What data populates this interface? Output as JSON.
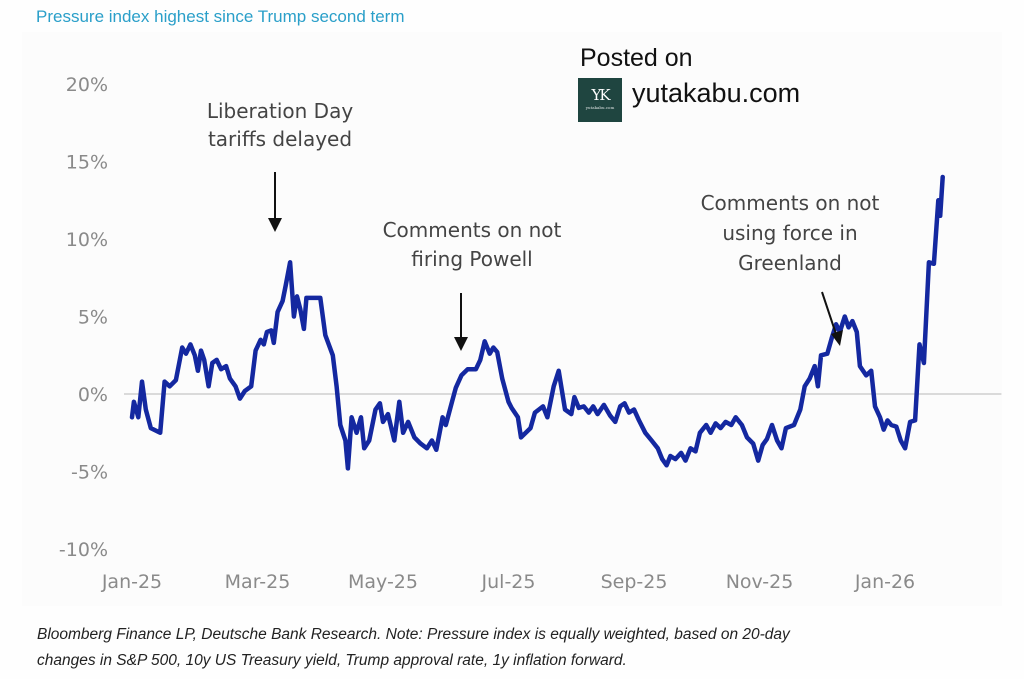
{
  "header": {
    "title": "Pressure index highest since Trump second term"
  },
  "watermark": {
    "posted_on": "Posted on",
    "site": "yutakabu.com",
    "logo_mark": "YK",
    "logo_subtext": "yutakabu.com"
  },
  "caption": {
    "line1": "Bloomberg Finance LP, Deutsche Bank Research. Note: Pressure index is equally weighted, based on 20-day",
    "line2": "changes in S&P 500, 10y US Treasury yield, Trump approval rate, 1y inflation forward."
  },
  "colors": {
    "line": "#1428a0",
    "title": "#2a9fc9",
    "tick": "#8a8a8a",
    "zero_line": "#cfcfcf",
    "annotation": "#444444"
  },
  "chart_data": {
    "type": "line",
    "title": "Pressure index highest since Trump second term",
    "xlabel": "",
    "ylabel": "",
    "x_unit": "months since Jan-25",
    "xlim": [
      0,
      13.6
    ],
    "ylim": [
      -10,
      20
    ],
    "yticks": [
      20,
      15,
      10,
      5,
      0,
      -5,
      -10
    ],
    "ytick_labels": [
      "20%",
      "15%",
      "10%",
      "5%",
      "0%",
      "-5%",
      "-10%"
    ],
    "xticks": [
      0,
      2,
      4,
      6,
      8,
      10,
      12
    ],
    "xtick_labels": [
      "Jan-25",
      "Mar-25",
      "May-25",
      "Jul-25",
      "Sep-25",
      "Nov-25",
      "Jan-26"
    ],
    "grid": false,
    "reference_line": 0,
    "legend": "none",
    "series": [
      {
        "name": "Pressure index",
        "points": [
          [
            0.0,
            -1.5
          ],
          [
            0.03,
            -0.5
          ],
          [
            0.1,
            -1.5
          ],
          [
            0.16,
            0.8
          ],
          [
            0.22,
            -1.0
          ],
          [
            0.3,
            -2.2
          ],
          [
            0.45,
            -2.5
          ],
          [
            0.52,
            0.8
          ],
          [
            0.6,
            0.5
          ],
          [
            0.7,
            0.9
          ],
          [
            0.8,
            3.0
          ],
          [
            0.86,
            2.6
          ],
          [
            0.93,
            3.2
          ],
          [
            1.0,
            2.5
          ],
          [
            1.05,
            1.5
          ],
          [
            1.1,
            2.8
          ],
          [
            1.15,
            2.2
          ],
          [
            1.22,
            0.5
          ],
          [
            1.28,
            2.0
          ],
          [
            1.35,
            2.2
          ],
          [
            1.42,
            1.6
          ],
          [
            1.5,
            1.8
          ],
          [
            1.56,
            1.0
          ],
          [
            1.65,
            0.5
          ],
          [
            1.72,
            -0.3
          ],
          [
            1.8,
            0.2
          ],
          [
            1.9,
            0.5
          ],
          [
            1.97,
            2.8
          ],
          [
            2.05,
            3.5
          ],
          [
            2.1,
            3.2
          ],
          [
            2.15,
            4.0
          ],
          [
            2.22,
            4.1
          ],
          [
            2.26,
            3.3
          ],
          [
            2.32,
            5.3
          ],
          [
            2.4,
            6.0
          ],
          [
            2.45,
            7.0
          ],
          [
            2.52,
            8.5
          ],
          [
            2.58,
            5.0
          ],
          [
            2.63,
            6.3
          ],
          [
            2.68,
            5.5
          ],
          [
            2.74,
            4.2
          ],
          [
            2.78,
            6.2
          ],
          [
            3.0,
            6.2
          ],
          [
            3.08,
            3.8
          ],
          [
            3.2,
            2.5
          ],
          [
            3.26,
            0.5
          ],
          [
            3.32,
            -2.0
          ],
          [
            3.4,
            -3.0
          ],
          [
            3.44,
            -4.8
          ],
          [
            3.5,
            -1.5
          ],
          [
            3.58,
            -2.5
          ],
          [
            3.65,
            -1.5
          ],
          [
            3.7,
            -3.5
          ],
          [
            3.78,
            -3.0
          ],
          [
            3.88,
            -1.0
          ],
          [
            3.95,
            -0.6
          ],
          [
            4.0,
            -1.8
          ],
          [
            4.08,
            -1.3
          ],
          [
            4.18,
            -3.0
          ],
          [
            4.26,
            -0.5
          ],
          [
            4.32,
            -2.5
          ],
          [
            4.4,
            -1.8
          ],
          [
            4.5,
            -2.8
          ],
          [
            4.6,
            -3.2
          ],
          [
            4.7,
            -3.5
          ],
          [
            4.78,
            -3.0
          ],
          [
            4.85,
            -3.6
          ],
          [
            4.95,
            -1.5
          ],
          [
            5.0,
            -2.0
          ],
          [
            5.1,
            -0.5
          ],
          [
            5.16,
            0.4
          ],
          [
            5.25,
            1.2
          ],
          [
            5.35,
            1.6
          ],
          [
            5.48,
            1.6
          ],
          [
            5.55,
            2.2
          ],
          [
            5.62,
            3.4
          ],
          [
            5.7,
            2.6
          ],
          [
            5.76,
            3.0
          ],
          [
            5.82,
            2.7
          ],
          [
            5.9,
            1.0
          ],
          [
            6.0,
            -0.5
          ],
          [
            6.05,
            -0.9
          ],
          [
            6.15,
            -1.5
          ],
          [
            6.2,
            -2.8
          ],
          [
            6.35,
            -2.2
          ],
          [
            6.42,
            -1.2
          ],
          [
            6.55,
            -0.8
          ],
          [
            6.62,
            -1.5
          ],
          [
            6.72,
            0.5
          ],
          [
            6.8,
            1.5
          ],
          [
            6.9,
            -1.0
          ],
          [
            7.0,
            -1.3
          ],
          [
            7.05,
            -0.2
          ],
          [
            7.12,
            -0.9
          ],
          [
            7.2,
            -0.8
          ],
          [
            7.28,
            -1.2
          ],
          [
            7.35,
            -0.8
          ],
          [
            7.42,
            -1.3
          ],
          [
            7.52,
            -0.7
          ],
          [
            7.62,
            -1.4
          ],
          [
            7.7,
            -1.8
          ],
          [
            7.78,
            -0.8
          ],
          [
            7.85,
            -0.6
          ],
          [
            7.92,
            -1.2
          ],
          [
            8.0,
            -1.0
          ],
          [
            8.08,
            -1.7
          ],
          [
            8.18,
            -2.5
          ],
          [
            8.28,
            -3.0
          ],
          [
            8.38,
            -3.5
          ],
          [
            8.45,
            -4.2
          ],
          [
            8.52,
            -4.6
          ],
          [
            8.58,
            -4.0
          ],
          [
            8.66,
            -4.2
          ],
          [
            8.75,
            -3.8
          ],
          [
            8.82,
            -4.3
          ],
          [
            8.9,
            -3.5
          ],
          [
            8.98,
            -3.7
          ],
          [
            9.05,
            -2.5
          ],
          [
            9.15,
            -2.0
          ],
          [
            9.22,
            -2.5
          ],
          [
            9.3,
            -1.9
          ],
          [
            9.38,
            -2.2
          ],
          [
            9.46,
            -1.8
          ],
          [
            9.55,
            -2.0
          ],
          [
            9.62,
            -1.5
          ],
          [
            9.72,
            -2.0
          ],
          [
            9.8,
            -2.8
          ],
          [
            9.9,
            -3.2
          ],
          [
            9.98,
            -4.3
          ],
          [
            10.05,
            -3.3
          ],
          [
            10.12,
            -2.9
          ],
          [
            10.2,
            -2.0
          ],
          [
            10.28,
            -3.0
          ],
          [
            10.35,
            -3.5
          ],
          [
            10.42,
            -2.2
          ],
          [
            10.55,
            -2.0
          ],
          [
            10.65,
            -1.0
          ],
          [
            10.72,
            0.5
          ],
          [
            10.8,
            1.0
          ],
          [
            10.88,
            1.8
          ],
          [
            10.93,
            0.5
          ],
          [
            10.98,
            2.5
          ],
          [
            11.08,
            2.6
          ],
          [
            11.15,
            3.6
          ],
          [
            11.22,
            4.5
          ],
          [
            11.28,
            4.0
          ],
          [
            11.36,
            5.0
          ],
          [
            11.42,
            4.3
          ],
          [
            11.48,
            4.7
          ],
          [
            11.55,
            4.0
          ],
          [
            11.6,
            1.8
          ],
          [
            11.7,
            1.2
          ],
          [
            11.78,
            1.5
          ],
          [
            11.84,
            -0.8
          ],
          [
            11.92,
            -1.5
          ],
          [
            11.98,
            -2.3
          ],
          [
            12.04,
            -1.7
          ],
          [
            12.1,
            -2.0
          ],
          [
            12.18,
            -2.1
          ],
          [
            12.25,
            -3.0
          ],
          [
            12.32,
            -3.5
          ],
          [
            12.4,
            -1.8
          ],
          [
            12.48,
            -1.7
          ],
          [
            12.55,
            3.2
          ],
          [
            12.62,
            2.0
          ],
          [
            12.7,
            8.5
          ],
          [
            12.78,
            8.4
          ],
          [
            12.85,
            12.5
          ],
          [
            12.88,
            11.5
          ],
          [
            12.92,
            14.0
          ]
        ]
      }
    ],
    "annotations": [
      {
        "text": [
          "Liberation Day",
          "tariffs delayed"
        ],
        "x": 2.55,
        "arrow": "down"
      },
      {
        "text": [
          "Comments on not",
          "firing Powell"
        ],
        "x": 5.25,
        "arrow": "down"
      },
      {
        "text": [
          "Comments on not",
          "using force in",
          "Greenland"
        ],
        "x": 10.75,
        "arrow": "diagonal"
      }
    ]
  }
}
